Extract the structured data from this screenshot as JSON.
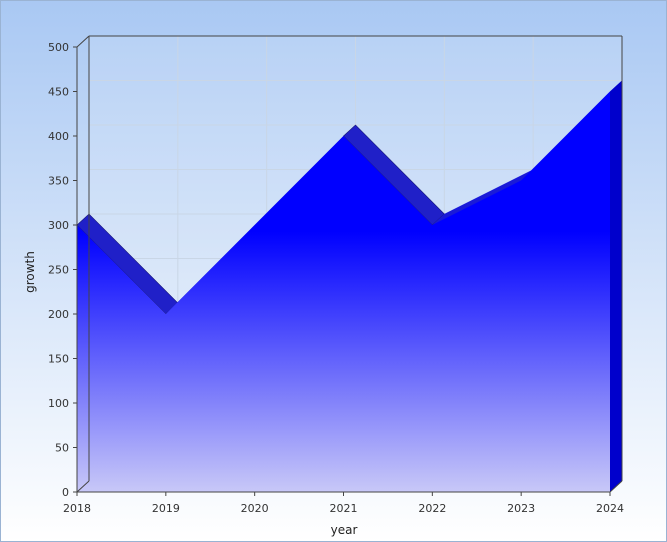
{
  "chart_data": {
    "type": "area",
    "xlabel": "year",
    "ylabel": "growth",
    "categories": [
      "2018",
      "2019",
      "2020",
      "2021",
      "2022",
      "2023",
      "2024"
    ],
    "series": [
      {
        "values": [
          300,
          200,
          300,
          400,
          300,
          350,
          450
        ]
      }
    ],
    "ylim": [
      0,
      500
    ],
    "yticks": [
      0,
      50,
      100,
      150,
      200,
      250,
      300,
      350,
      400,
      450,
      500
    ],
    "grid": true,
    "legend": "none",
    "style": "3d",
    "colors": {
      "background_top": "#a9c8f3",
      "background_bottom": "#ffffff",
      "fill_top": "#0000ff",
      "fill_bottom": "#c8c8f8",
      "side": "#2020c8",
      "frame": "#444444",
      "grid": "#c9d6e6"
    }
  }
}
